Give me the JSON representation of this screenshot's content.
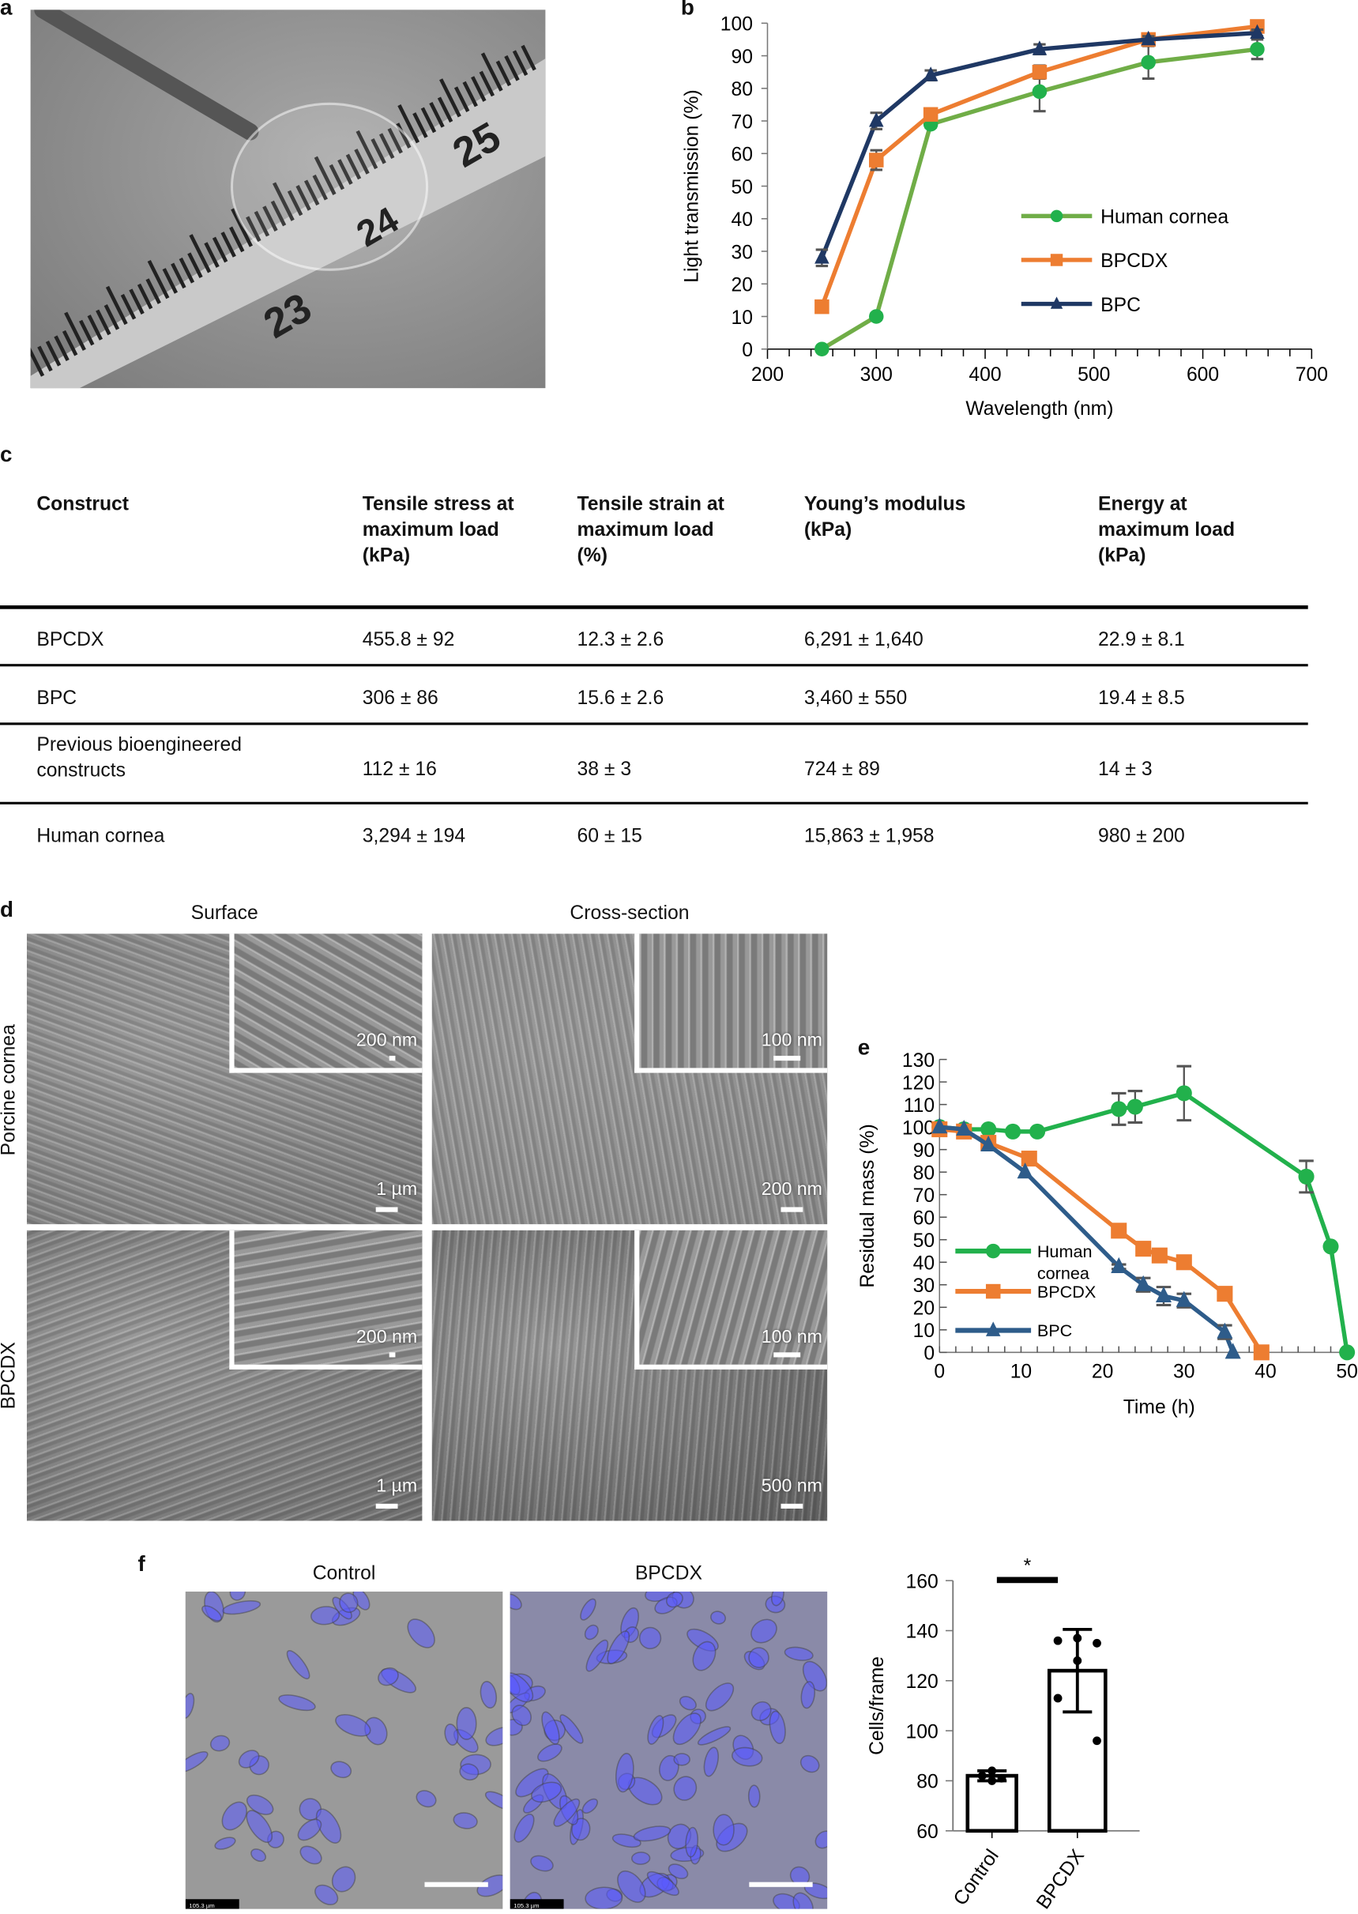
{
  "panels": {
    "a": "a",
    "b": "b",
    "c": "c",
    "d": "d",
    "e": "e",
    "f": "f"
  },
  "panel_a": {
    "ruler_numbers": [
      "23",
      "24",
      "25"
    ]
  },
  "table": {
    "headers": [
      "Construct",
      "Tensile stress at maximum load (kPa)",
      "Tensile strain at maximum load (%)",
      "Young’s modulus (kPa)",
      "Energy at maximum load (kPa)"
    ],
    "header_lines": [
      [
        "Construct"
      ],
      [
        "Tensile stress at",
        "maximum load",
        "(kPa)"
      ],
      [
        "Tensile strain at",
        "maximum load",
        "(%)"
      ],
      [
        "Young’s modulus",
        "(kPa)"
      ],
      [
        "Energy at",
        "maximum load",
        "(kPa)"
      ]
    ],
    "rows": [
      {
        "construct": "BPCDX",
        "stress": "455.8 ± 92",
        "strain": "12.3 ± 2.6",
        "modulus": "6,291 ± 1,640",
        "energy": "22.9 ± 8.1"
      },
      {
        "construct": "BPC",
        "stress": "306 ± 86",
        "strain": "15.6 ± 2.6",
        "modulus": "3,460 ± 550",
        "energy": "19.4 ± 8.5"
      },
      {
        "construct": "Previous bioengineered constructs",
        "construct_lines": [
          "Previous bioengineered",
          "constructs"
        ],
        "stress": "112 ± 16",
        "strain": "38 ± 3",
        "modulus": "724 ± 89",
        "energy": "14 ± 3"
      },
      {
        "construct": "Human cornea",
        "stress": "3,294 ± 194",
        "strain": "60 ± 15",
        "modulus": "15,863 ± 1,958",
        "energy": "980 ± 200"
      }
    ]
  },
  "panel_d": {
    "col_titles": [
      "Surface",
      "Cross-section"
    ],
    "row_titles": [
      "Porcine cornea",
      "BPCDX"
    ],
    "scale_bars": {
      "tl_inset": "200 nm",
      "tl_main": "1 µm",
      "tr_inset": "100 nm",
      "tr_main": "200 nm",
      "bl_inset": "200 nm",
      "bl_main": "1 µm",
      "br_inset": "100 nm",
      "br_main": "500 nm"
    }
  },
  "panel_f": {
    "image_titles": [
      "Control",
      "BPCDX"
    ],
    "image_scale_text": "105.3 µm"
  },
  "colors": {
    "human": "#22b14c",
    "human_line": "#70ad47",
    "bpcdx": "#ed7d31",
    "bpc_b": "#1f3864",
    "bpc_e": "#2e5c8a",
    "error": "#555555",
    "dapi": "#5a5aff"
  },
  "chart_data": [
    {
      "id": "b",
      "type": "line",
      "xlabel": "Wavelength (nm)",
      "ylabel": "Light transmission (%)",
      "xlim": [
        200,
        700
      ],
      "ylim": [
        0,
        100
      ],
      "xticks": [
        200,
        300,
        400,
        500,
        600,
        700
      ],
      "yticks": [
        0,
        10,
        20,
        30,
        40,
        50,
        60,
        70,
        80,
        90,
        100
      ],
      "legend": "center-right",
      "grid": false,
      "x": [
        250,
        300,
        350,
        450,
        550,
        650
      ],
      "series": [
        {
          "name": "Human cornea",
          "marker": "circle",
          "values": [
            0,
            10,
            69,
            79,
            88,
            92
          ],
          "errors": [
            0,
            1,
            1,
            6,
            5,
            3
          ]
        },
        {
          "name": "BPCDX",
          "marker": "square",
          "values": [
            13,
            58,
            72,
            85,
            95,
            99
          ],
          "errors": [
            0,
            3,
            1,
            2,
            1,
            1
          ]
        },
        {
          "name": "BPC",
          "marker": "triangle",
          "values": [
            28,
            70,
            84,
            92,
            95,
            97
          ],
          "errors": [
            2.5,
            2.5,
            1.5,
            1.5,
            1,
            1
          ]
        }
      ]
    },
    {
      "id": "e",
      "type": "line",
      "xlabel": "Time (h)",
      "ylabel": "Residual mass (%)",
      "xlim": [
        0,
        50
      ],
      "ylim": [
        0,
        130
      ],
      "xticks": [
        0,
        10,
        20,
        30,
        40,
        50
      ],
      "yticks": [
        0,
        10,
        20,
        30,
        40,
        50,
        60,
        70,
        80,
        90,
        100,
        110,
        120,
        130
      ],
      "legend": "bottom-left",
      "grid": false,
      "series": [
        {
          "name": "Human cornea",
          "name_lines": [
            "Human",
            "cornea"
          ],
          "marker": "circle",
          "x": [
            0,
            3,
            6,
            9,
            12,
            22,
            24,
            30,
            45,
            48,
            50
          ],
          "values": [
            100,
            99,
            99,
            98,
            98,
            108,
            109,
            115,
            78,
            47,
            0
          ],
          "errors": [
            0,
            0,
            0,
            0,
            0,
            7,
            7,
            12,
            7,
            0,
            0
          ]
        },
        {
          "name": "BPCDX",
          "marker": "square",
          "x": [
            0,
            3,
            6,
            11,
            22,
            25,
            27,
            30,
            35,
            39.5
          ],
          "values": [
            99,
            98,
            93,
            86,
            54,
            46,
            43,
            40,
            26,
            0
          ],
          "errors": [
            0,
            0,
            0,
            0,
            0,
            0,
            0,
            0,
            0,
            0
          ]
        },
        {
          "name": "BPC",
          "marker": "triangle",
          "x": [
            0,
            3,
            6,
            10.5,
            22,
            25,
            27.5,
            30,
            35,
            36
          ],
          "values": [
            100,
            99,
            92,
            80,
            38,
            30,
            25,
            23,
            9,
            0
          ],
          "errors": [
            0,
            0,
            0,
            0,
            1,
            3,
            4,
            3,
            3,
            0
          ]
        }
      ]
    },
    {
      "id": "f",
      "type": "bar",
      "ylabel": "Cells/frame",
      "ylim": [
        60,
        160
      ],
      "yticks": [
        60,
        80,
        100,
        120,
        140,
        160
      ],
      "categories": [
        "Control",
        "BPCDX"
      ],
      "values": [
        82,
        124
      ],
      "errors": [
        2,
        16.5
      ],
      "points": [
        [
          84,
          82,
          81,
          80
        ],
        [
          137,
          136,
          135,
          128,
          113,
          96
        ]
      ],
      "significance": "*"
    }
  ]
}
